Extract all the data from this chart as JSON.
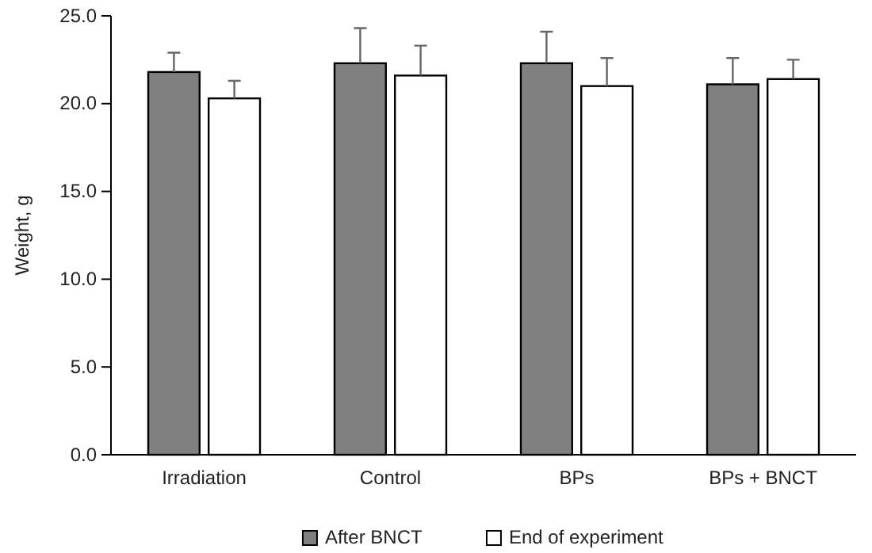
{
  "chart_data": {
    "type": "bar",
    "ylabel": "Weight, g",
    "categories": [
      "Irradiation",
      "Control",
      "BPs",
      "BPs + BNCT"
    ],
    "series": [
      {
        "name": "After BNCT",
        "color": "#808080",
        "values": [
          21.8,
          22.3,
          22.3,
          21.1
        ],
        "errors": [
          [
            21.8,
            22.9
          ],
          [
            22.3,
            24.3
          ],
          [
            22.3,
            24.1
          ],
          [
            21.1,
            22.6
          ]
        ]
      },
      {
        "name": "End of experiment",
        "color": "#ffffff",
        "values": [
          20.3,
          21.6,
          21.0,
          21.4
        ],
        "errors": [
          [
            20.3,
            21.3
          ],
          [
            21.6,
            23.3
          ],
          [
            21.0,
            22.6
          ],
          [
            21.4,
            22.5
          ]
        ]
      }
    ],
    "ylim": [
      0,
      25
    ],
    "yticks": [
      {
        "value": 0,
        "label": "0.0"
      },
      {
        "value": 5,
        "label": "5.0"
      },
      {
        "value": 10,
        "label": "10.0"
      },
      {
        "value": 15,
        "label": "15.0"
      },
      {
        "value": 20,
        "label": "20.0"
      },
      {
        "value": 25,
        "label": "25.0"
      }
    ],
    "grid": false,
    "legend": "bottom"
  }
}
